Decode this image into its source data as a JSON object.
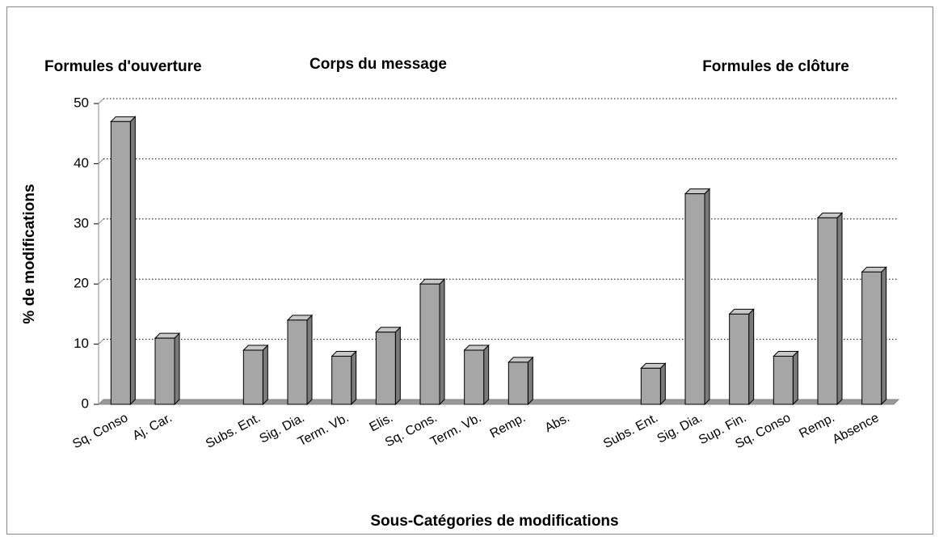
{
  "chart_data": {
    "type": "bar",
    "categories": [
      "Sq. Conso",
      "Aj. Car.",
      null,
      "Subs. Ent.",
      "Sig. Dia.",
      "Term. Vb.",
      "Elis.",
      "Sq. Cons.",
      "Term. Vb.",
      "Remp.",
      "Abs.",
      null,
      "Subs. Ent.",
      "Sig. Dia.",
      "Sup. Fin.",
      "Sq. Conso",
      "Remp.",
      "Absence"
    ],
    "values": [
      47,
      11,
      null,
      9,
      14,
      8,
      12,
      20,
      9,
      7,
      0,
      null,
      6,
      35,
      15,
      8,
      31,
      22
    ],
    "color": "#a6a6a6",
    "ylabel": "% de modifications",
    "xlabel": "Sous-Catégories de modifications",
    "annotations": [
      "Formules d'ouverture",
      "Corps du message",
      "Formules de clôture"
    ],
    "ylim": [
      0,
      50
    ],
    "yticks": [
      0,
      10,
      20,
      30,
      40,
      50
    ],
    "grid": true
  }
}
